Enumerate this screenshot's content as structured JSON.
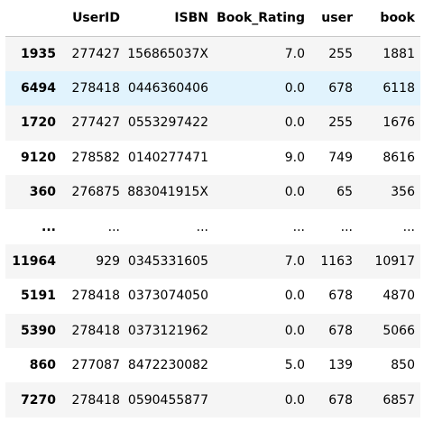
{
  "table": {
    "columns": [
      "",
      "UserID",
      "ISBN",
      "Book_Rating",
      "user",
      "book"
    ],
    "rows": [
      {
        "index": "1935",
        "cells": [
          "277427",
          "156865037X",
          "7.0",
          "255",
          "1881"
        ]
      },
      {
        "index": "6494",
        "cells": [
          "278418",
          "0446360406",
          "0.0",
          "678",
          "6118"
        ]
      },
      {
        "index": "1720",
        "cells": [
          "277427",
          "0553297422",
          "0.0",
          "255",
          "1676"
        ]
      },
      {
        "index": "9120",
        "cells": [
          "278582",
          "0140277471",
          "9.0",
          "749",
          "8616"
        ]
      },
      {
        "index": "360",
        "cells": [
          "276875",
          "883041915X",
          "0.0",
          "65",
          "356"
        ]
      },
      {
        "index": "...",
        "cells": [
          "...",
          "...",
          "...",
          "...",
          "..."
        ]
      },
      {
        "index": "11964",
        "cells": [
          "929",
          "0345331605",
          "7.0",
          "1163",
          "10917"
        ]
      },
      {
        "index": "5191",
        "cells": [
          "278418",
          "0373074050",
          "0.0",
          "678",
          "4870"
        ]
      },
      {
        "index": "5390",
        "cells": [
          "278418",
          "0373121962",
          "0.0",
          "678",
          "5066"
        ]
      },
      {
        "index": "860",
        "cells": [
          "277087",
          "8472230082",
          "5.0",
          "139",
          "850"
        ]
      },
      {
        "index": "7270",
        "cells": [
          "278418",
          "0590455877",
          "0.0",
          "678",
          "6857"
        ]
      }
    ],
    "hover_row_index": 1,
    "colors": {
      "stripe": "#f5f5f5",
      "hover": "#e1f3fd",
      "header_border": "#c8c8c8"
    }
  }
}
